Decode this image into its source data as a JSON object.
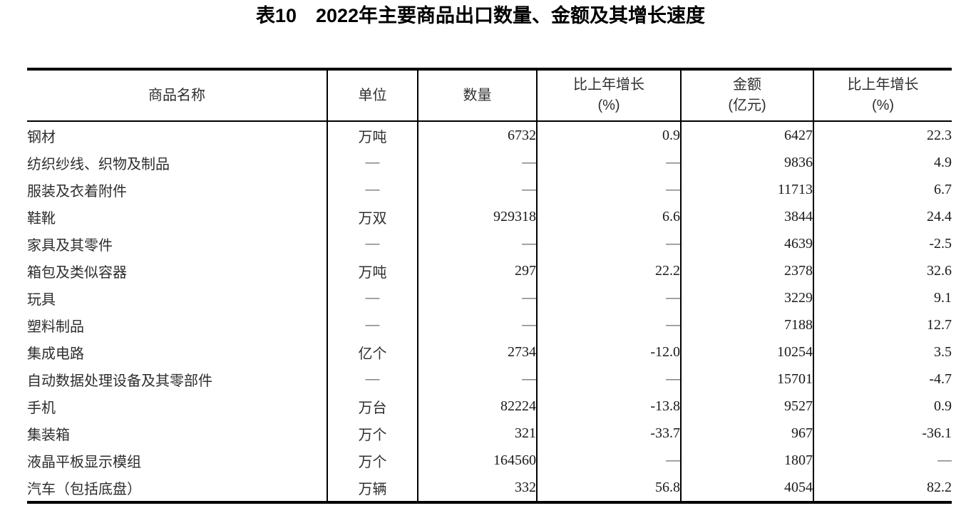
{
  "title": "表10　2022年主要商品出口数量、金额及其增长速度",
  "table": {
    "missing_marker": "—",
    "headers": [
      {
        "lines": [
          "商品名称"
        ]
      },
      {
        "lines": [
          "单位"
        ]
      },
      {
        "lines": [
          "数量"
        ]
      },
      {
        "lines": [
          "比上年增长",
          "(%)"
        ]
      },
      {
        "lines": [
          "金额",
          "(亿元)"
        ]
      },
      {
        "lines": [
          "比上年增长",
          "(%)"
        ]
      }
    ],
    "rows": [
      {
        "name": "钢材",
        "unit": "万吨",
        "quantity": "6732",
        "quantity_growth": "0.9",
        "amount": "6427",
        "amount_growth": "22.3"
      },
      {
        "name": "纺织纱线、织物及制品",
        "unit": "—",
        "quantity": "—",
        "quantity_growth": "—",
        "amount": "9836",
        "amount_growth": "4.9"
      },
      {
        "name": "服装及衣着附件",
        "unit": "—",
        "quantity": "—",
        "quantity_growth": "—",
        "amount": "11713",
        "amount_growth": "6.7"
      },
      {
        "name": "鞋靴",
        "unit": "万双",
        "quantity": "929318",
        "quantity_growth": "6.6",
        "amount": "3844",
        "amount_growth": "24.4"
      },
      {
        "name": "家具及其零件",
        "unit": "—",
        "quantity": "—",
        "quantity_growth": "—",
        "amount": "4639",
        "amount_growth": "-2.5"
      },
      {
        "name": "箱包及类似容器",
        "unit": "万吨",
        "quantity": "297",
        "quantity_growth": "22.2",
        "amount": "2378",
        "amount_growth": "32.6"
      },
      {
        "name": "玩具",
        "unit": "—",
        "quantity": "—",
        "quantity_growth": "—",
        "amount": "3229",
        "amount_growth": "9.1"
      },
      {
        "name": "塑料制品",
        "unit": "—",
        "quantity": "—",
        "quantity_growth": "—",
        "amount": "7188",
        "amount_growth": "12.7"
      },
      {
        "name": "集成电路",
        "unit": "亿个",
        "quantity": "2734",
        "quantity_growth": "-12.0",
        "amount": "10254",
        "amount_growth": "3.5"
      },
      {
        "name": "自动数据处理设备及其零部件",
        "unit": "—",
        "quantity": "—",
        "quantity_growth": "—",
        "amount": "15701",
        "amount_growth": "-4.7"
      },
      {
        "name": "手机",
        "unit": "万台",
        "quantity": "82224",
        "quantity_growth": "-13.8",
        "amount": "9527",
        "amount_growth": "0.9"
      },
      {
        "name": "集装箱",
        "unit": "万个",
        "quantity": "321",
        "quantity_growth": "-33.7",
        "amount": "967",
        "amount_growth": "-36.1"
      },
      {
        "name": "液晶平板显示模组",
        "unit": "万个",
        "quantity": "164560",
        "quantity_growth": "—",
        "amount": "1807",
        "amount_growth": "—"
      },
      {
        "name": "汽车（包括底盘）",
        "unit": "万辆",
        "quantity": "332",
        "quantity_growth": "56.8",
        "amount": "4054",
        "amount_growth": "82.2"
      }
    ]
  }
}
